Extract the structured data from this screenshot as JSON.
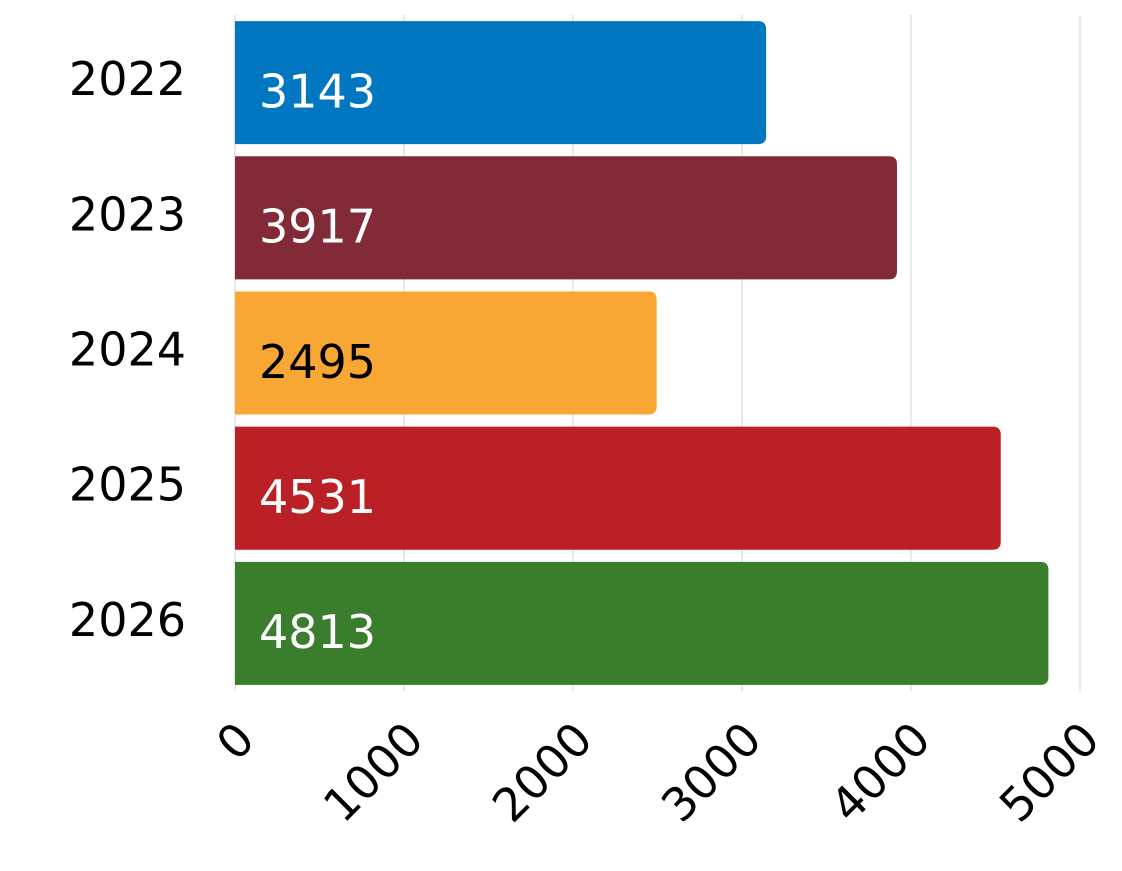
{
  "chart_data": {
    "type": "bar",
    "orientation": "horizontal",
    "categories": [
      "2022",
      "2023",
      "2024",
      "2025",
      "2026"
    ],
    "values": [
      3143,
      3917,
      2495,
      4531,
      4813
    ],
    "colors": [
      "#0077c0",
      "#822a37",
      "#f9a734",
      "#bb2026",
      "#3a7d2c"
    ],
    "value_label_colors": [
      "#ffffff",
      "#ffffff",
      "#000000",
      "#ffffff",
      "#ffffff"
    ],
    "xlim": [
      0,
      5000
    ],
    "xticks": [
      0,
      1000,
      2000,
      3000,
      4000,
      5000
    ],
    "grid": true
  }
}
